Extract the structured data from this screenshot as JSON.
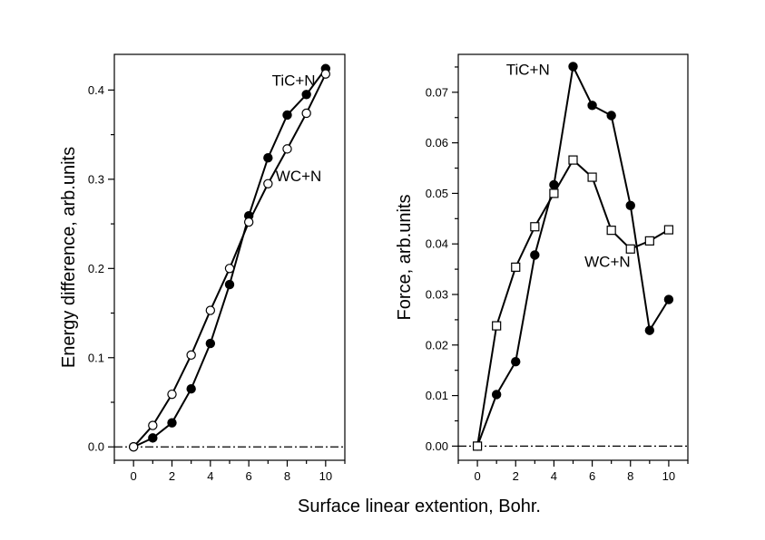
{
  "figure": {
    "xlabel": "Surface linear extention, Bohr."
  },
  "chart_data": [
    {
      "type": "line",
      "ylabel": "Energy difference, arb.units",
      "xlim": [
        -1,
        11
      ],
      "ylim": [
        -0.015,
        0.44
      ],
      "xticks": [
        0,
        2,
        4,
        6,
        8,
        10
      ],
      "yticks": [
        0.0,
        0.1,
        0.2,
        0.3,
        0.4
      ],
      "ytick_labels": [
        "0.0",
        "0.1",
        "0.2",
        "0.3",
        "0.4"
      ],
      "reference_line": 0,
      "series": [
        {
          "name": "TiC+N",
          "marker": "filled-circle",
          "x": [
            0,
            1,
            2,
            3,
            4,
            5,
            6,
            7,
            8,
            9,
            10
          ],
          "y": [
            0.0,
            0.01,
            0.027,
            0.065,
            0.116,
            0.182,
            0.259,
            0.324,
            0.372,
            0.395,
            0.424
          ],
          "label_at": [
            7.2,
            0.405
          ]
        },
        {
          "name": "WC+N",
          "marker": "open-circle",
          "x": [
            0,
            1,
            2,
            3,
            4,
            5,
            6,
            7,
            8,
            9,
            10
          ],
          "y": [
            0.0,
            0.024,
            0.059,
            0.103,
            0.153,
            0.2,
            0.252,
            0.295,
            0.334,
            0.374,
            0.418
          ],
          "label_at": [
            7.4,
            0.298
          ]
        }
      ]
    },
    {
      "type": "line",
      "ylabel": "Force, arb.units",
      "xlim": [
        -1,
        11
      ],
      "ylim": [
        -0.0028,
        0.0775
      ],
      "xticks": [
        0,
        2,
        4,
        6,
        8,
        10
      ],
      "yticks": [
        0.0,
        0.01,
        0.02,
        0.03,
        0.04,
        0.05,
        0.06,
        0.07
      ],
      "ytick_labels": [
        "0.00",
        "0.01",
        "0.02",
        "0.03",
        "0.04",
        "0.05",
        "0.06",
        "0.07"
      ],
      "reference_line": 0,
      "series": [
        {
          "name": "TiC+N",
          "marker": "filled-circle",
          "x": [
            0,
            1,
            2,
            3,
            4,
            5,
            6,
            7,
            8,
            9,
            10
          ],
          "y": [
            0.0,
            0.0102,
            0.0167,
            0.0378,
            0.0517,
            0.0751,
            0.0674,
            0.0654,
            0.0476,
            0.0229,
            0.029
          ],
          "label_at": [
            1.5,
            0.0735
          ]
        },
        {
          "name": "WC+N",
          "marker": "open-square",
          "x": [
            0,
            1,
            2,
            3,
            4,
            5,
            6,
            7,
            8,
            9,
            10
          ],
          "y": [
            0.0,
            0.0238,
            0.0354,
            0.0434,
            0.05,
            0.0566,
            0.0532,
            0.0427,
            0.039,
            0.0406,
            0.0428
          ],
          "label_at": [
            5.6,
            0.0355
          ]
        }
      ]
    }
  ]
}
